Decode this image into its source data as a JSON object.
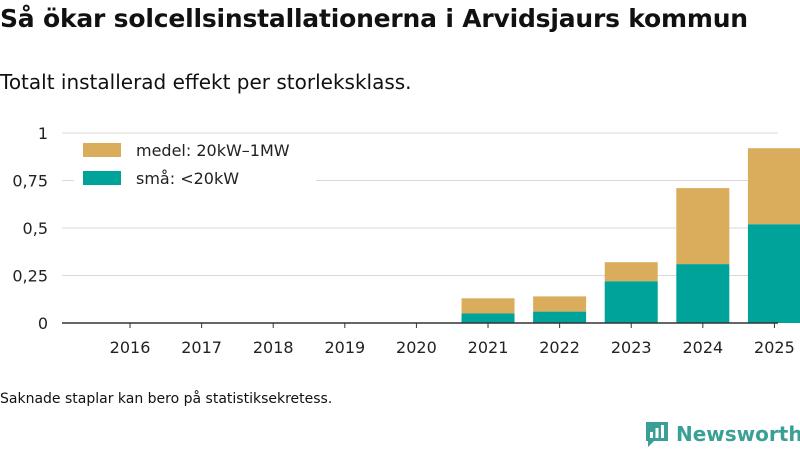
{
  "chart_data": {
    "type": "bar",
    "stacked": true,
    "title": "Så ökar solcellsinstallationerna i Arvidsjaurs kommun",
    "subtitle": "Totalt installerad effekt per storleksklass.",
    "xlabel": "",
    "ylabel": "",
    "ylim": [
      0,
      1
    ],
    "yticks": [
      0,
      0.25,
      0.5,
      0.75,
      1
    ],
    "ytick_labels": [
      "0",
      "0,25",
      "0,5",
      "0,75",
      "1"
    ],
    "categories": [
      "2016",
      "2017",
      "2018",
      "2019",
      "2020",
      "2021",
      "2022",
      "2023",
      "2024",
      "2025"
    ],
    "series": [
      {
        "name": "små: <20kW",
        "color": "#00a39a",
        "values": [
          0,
          0,
          0,
          0,
          0,
          0.05,
          0.06,
          0.22,
          0.31,
          0.52
        ]
      },
      {
        "name": "medel: 20kW–1MW",
        "color": "#d9ad5b",
        "values": [
          0,
          0,
          0,
          0,
          0,
          0.08,
          0.08,
          0.1,
          0.4,
          0.4
        ]
      }
    ],
    "legend": {
      "position": "top-left",
      "order": [
        "medel: 20kW–1MW",
        "små: <20kW"
      ]
    },
    "grid": true
  },
  "footer": {
    "note": "Saknade staplar kan bero på statistiksekretess.",
    "brand": "Newsworthy"
  },
  "colors": {
    "grid": "#d9d9d9",
    "axis": "#333333",
    "brand": "#3aa095"
  }
}
